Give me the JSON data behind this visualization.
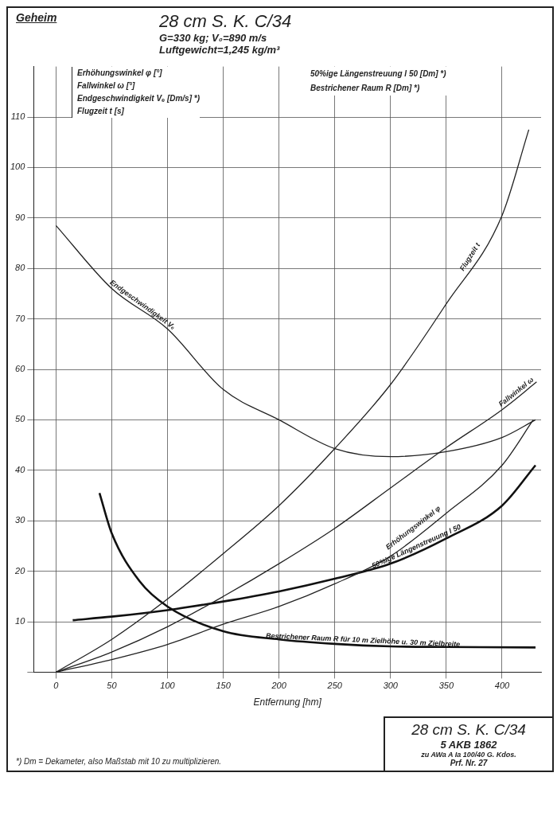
{
  "chart_data": {
    "type": "line",
    "title": "28 cm S. K. C/34",
    "subtitle": "G=330 kg; V₀=890 m/s\nLuftgewicht=1,245 kg/m³",
    "xlabel": "Entfernung [hm]",
    "annotations": [
      "Geheim",
      "Erhöhungswinkel φ [°]",
      "Fallwinkel ω [°]",
      "Endgeschwindigkeit Vₑ [Dm/s] *)",
      "Flugzeit t [s]",
      "50%ige Längenstreuung l 50 [Dm] *)",
      "Bestrichener Raum R [Dm] *)",
      "*) Dm = Dekameter, also Maßstab mit 10 zu multiplizieren.",
      "28 cm S. K. C/34",
      "5 AKB 1862",
      "zu AWa A Ia 100/40 G. Kdos.",
      "Prf. Nr. 27"
    ],
    "xlim": [
      -20,
      435
    ],
    "xticks": [
      0,
      50,
      100,
      150,
      200,
      250,
      300,
      350,
      400
    ],
    "ylim": [
      0,
      120
    ],
    "yticks": [
      {
        "value": 0,
        "label": null
      },
      10,
      20,
      30,
      40,
      50,
      60,
      70,
      80,
      90,
      100,
      110
    ],
    "grid": true,
    "legend": false,
    "marker": "none",
    "line_style": "solid",
    "series": [
      {
        "name": "Endgeschwindigkeit Vₑ",
        "color": "#222222",
        "x": [
          0,
          50,
          100,
          150,
          200,
          250,
          300,
          350,
          400,
          430
        ],
        "values": [
          88.5,
          76,
          68,
          56,
          50,
          44.3,
          42.7,
          43.7,
          46.5,
          50
        ]
      },
      {
        "name": "Flugzeit t",
        "color": "#222222",
        "x": [
          0,
          50,
          100,
          150,
          200,
          250,
          300,
          350,
          400,
          424
        ],
        "values": [
          0,
          6.5,
          14.5,
          23.5,
          33,
          44.3,
          57,
          73,
          90.5,
          107.5
        ]
      },
      {
        "name": "Fallwinkel ω",
        "color": "#222222",
        "x": [
          0,
          50,
          100,
          150,
          200,
          250,
          300,
          350,
          400,
          431
        ],
        "values": [
          0,
          4,
          9,
          15,
          21.5,
          28.5,
          36.5,
          44.5,
          52,
          57.5
        ]
      },
      {
        "name": "Erhöhungswinkel φ",
        "color": "#222222",
        "x": [
          0,
          50,
          100,
          150,
          200,
          250,
          300,
          350,
          400,
          428
        ],
        "values": [
          0,
          2.5,
          5.5,
          9.5,
          13,
          17.5,
          23,
          31.5,
          41,
          50
        ]
      },
      {
        "name": "50%ige Längenstreuung l 50",
        "color": "#111111",
        "x": [
          15,
          50,
          100,
          150,
          200,
          250,
          300,
          350,
          400,
          430
        ],
        "values": [
          10.3,
          11,
          12.3,
          14,
          16,
          18.5,
          21.5,
          26.5,
          33,
          41
        ]
      },
      {
        "name": "Bestrichener Raum R für 10 m Zielhöhe u. 30 m Zielbreite",
        "color": "#111111",
        "x": [
          39,
          50,
          75,
          100,
          150,
          200,
          250,
          300,
          350,
          430
        ],
        "values": [
          35.5,
          27.5,
          18,
          13,
          8.1,
          6.5,
          5.6,
          5.1,
          5,
          4.9
        ]
      }
    ]
  }
}
